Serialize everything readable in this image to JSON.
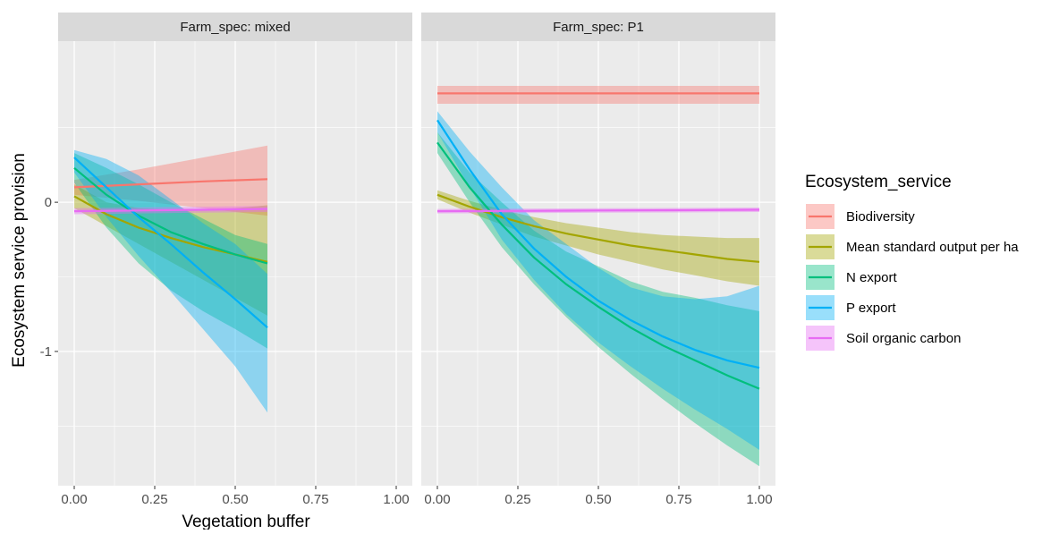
{
  "chart_data": {
    "type": "line",
    "xlabel": "Vegetation buffer",
    "ylabel": "Ecosystem service provision",
    "xlim": [
      -0.05,
      1.05
    ],
    "ylim": [
      -1.9,
      1.08
    ],
    "x_ticks": [
      "0.00",
      "0.25",
      "0.50",
      "0.75",
      "1.00"
    ],
    "x_tick_values": [
      0,
      0.25,
      0.5,
      0.75,
      1
    ],
    "y_ticks": [
      "-1",
      "0"
    ],
    "y_tick_values": [
      -1,
      0
    ],
    "grid": true,
    "legend": {
      "title": "Ecosystem_service",
      "position": "right",
      "entries": [
        "Biodiversity",
        "Mean standard output per ha",
        "N export",
        "P export",
        "Soil organic carbon"
      ]
    },
    "colors": {
      "Biodiversity": "#F8766D",
      "Mean standard output per ha": "#A3A500",
      "N export": "#00BF7D",
      "P export": "#00B0F6",
      "Soil organic carbon": "#E76BF3"
    },
    "panels": [
      {
        "strip": "Farm_spec: mixed",
        "series": [
          {
            "name": "Biodiversity",
            "x": [
              0,
              0.2,
              0.4,
              0.6
            ],
            "y": [
              0.1,
              0.12,
              0.14,
              0.155
            ],
            "lower": [
              0.05,
              0.01,
              -0.04,
              -0.09
            ],
            "upper": [
              0.15,
              0.22,
              0.3,
              0.38
            ]
          },
          {
            "name": "Mean standard output per ha",
            "x": [
              0,
              0.1,
              0.2,
              0.3,
              0.4,
              0.5,
              0.6
            ],
            "y": [
              0.04,
              -0.08,
              -0.17,
              -0.24,
              -0.3,
              -0.35,
              -0.4
            ],
            "lower": [
              -0.04,
              -0.16,
              -0.28,
              -0.4,
              -0.52,
              -0.64,
              -0.76
            ],
            "upper": [
              0.12,
              0.0,
              -0.04,
              -0.05,
              -0.05,
              -0.04,
              -0.02
            ]
          },
          {
            "name": "N export",
            "x": [
              0,
              0.1,
              0.2,
              0.3,
              0.4,
              0.5,
              0.6
            ],
            "y": [
              0.23,
              0.05,
              -0.09,
              -0.2,
              -0.28,
              -0.35,
              -0.41
            ],
            "lower": [
              0.13,
              -0.17,
              -0.41,
              -0.59,
              -0.73,
              -0.85,
              -0.98
            ],
            "upper": [
              0.33,
              0.23,
              0.12,
              0.0,
              -0.11,
              -0.22,
              -0.28
            ]
          },
          {
            "name": "P export",
            "x": [
              0,
              0.1,
              0.2,
              0.3,
              0.4,
              0.5,
              0.6
            ],
            "y": [
              0.3,
              0.1,
              -0.1,
              -0.28,
              -0.47,
              -0.65,
              -0.84
            ],
            "lower": [
              0.2,
              -0.1,
              -0.36,
              -0.6,
              -0.85,
              -1.1,
              -1.41
            ],
            "upper": [
              0.35,
              0.29,
              0.18,
              0.02,
              -0.14,
              -0.28,
              -0.48
            ]
          },
          {
            "name": "Soil organic carbon",
            "x": [
              0,
              0.2,
              0.4,
              0.6
            ],
            "y": [
              -0.06,
              -0.055,
              -0.05,
              -0.045
            ],
            "lower": [
              -0.08,
              -0.075,
              -0.07,
              -0.065
            ],
            "upper": [
              -0.04,
              -0.035,
              -0.03,
              -0.025
            ]
          }
        ]
      },
      {
        "strip": "Farm_spec: P1",
        "series": [
          {
            "name": "Biodiversity",
            "x": [
              0,
              0.25,
              0.5,
              0.75,
              1.0
            ],
            "y": [
              0.73,
              0.73,
              0.73,
              0.73,
              0.73
            ],
            "lower": [
              0.66,
              0.66,
              0.66,
              0.66,
              0.66
            ],
            "upper": [
              0.78,
              0.78,
              0.78,
              0.78,
              0.78
            ]
          },
          {
            "name": "Mean standard output per ha",
            "x": [
              0,
              0.1,
              0.2,
              0.3,
              0.4,
              0.5,
              0.6,
              0.7,
              0.8,
              0.9,
              1.0
            ],
            "y": [
              0.05,
              -0.03,
              -0.1,
              -0.16,
              -0.21,
              -0.25,
              -0.29,
              -0.32,
              -0.35,
              -0.38,
              -0.4
            ],
            "lower": [
              0.02,
              -0.07,
              -0.15,
              -0.23,
              -0.29,
              -0.35,
              -0.4,
              -0.45,
              -0.49,
              -0.53,
              -0.56
            ],
            "upper": [
              0.08,
              0.01,
              -0.05,
              -0.1,
              -0.14,
              -0.17,
              -0.2,
              -0.22,
              -0.23,
              -0.24,
              -0.24
            ]
          },
          {
            "name": "N export",
            "x": [
              0,
              0.1,
              0.2,
              0.3,
              0.4,
              0.5,
              0.6,
              0.7,
              0.8,
              0.9,
              1.0
            ],
            "y": [
              0.4,
              0.1,
              -0.15,
              -0.37,
              -0.55,
              -0.7,
              -0.84,
              -0.96,
              -1.06,
              -1.16,
              -1.25
            ],
            "lower": [
              0.33,
              0.0,
              -0.3,
              -0.55,
              -0.77,
              -0.97,
              -1.15,
              -1.32,
              -1.48,
              -1.63,
              -1.77
            ],
            "upper": [
              0.47,
              0.2,
              0.0,
              -0.19,
              -0.33,
              -0.43,
              -0.53,
              -0.6,
              -0.64,
              -0.69,
              -0.73
            ]
          },
          {
            "name": "P export",
            "x": [
              0,
              0.1,
              0.2,
              0.3,
              0.4,
              0.5,
              0.6,
              0.7,
              0.8,
              0.9,
              1.0
            ],
            "y": [
              0.55,
              0.22,
              -0.08,
              -0.31,
              -0.5,
              -0.66,
              -0.79,
              -0.9,
              -0.99,
              -1.06,
              -1.11
            ],
            "lower": [
              0.47,
              0.1,
              -0.25,
              -0.52,
              -0.75,
              -0.94,
              -1.1,
              -1.25,
              -1.39,
              -1.52,
              -1.66
            ],
            "upper": [
              0.61,
              0.34,
              0.1,
              -0.12,
              -0.28,
              -0.44,
              -0.57,
              -0.63,
              -0.65,
              -0.63,
              -0.56
            ]
          },
          {
            "name": "Soil organic carbon",
            "x": [
              0,
              0.25,
              0.5,
              0.75,
              1.0
            ],
            "y": [
              -0.06,
              -0.058,
              -0.055,
              -0.053,
              -0.05
            ],
            "lower": [
              -0.075,
              -0.073,
              -0.07,
              -0.068,
              -0.065
            ],
            "upper": [
              -0.045,
              -0.043,
              -0.04,
              -0.038,
              -0.035
            ]
          }
        ]
      }
    ]
  }
}
